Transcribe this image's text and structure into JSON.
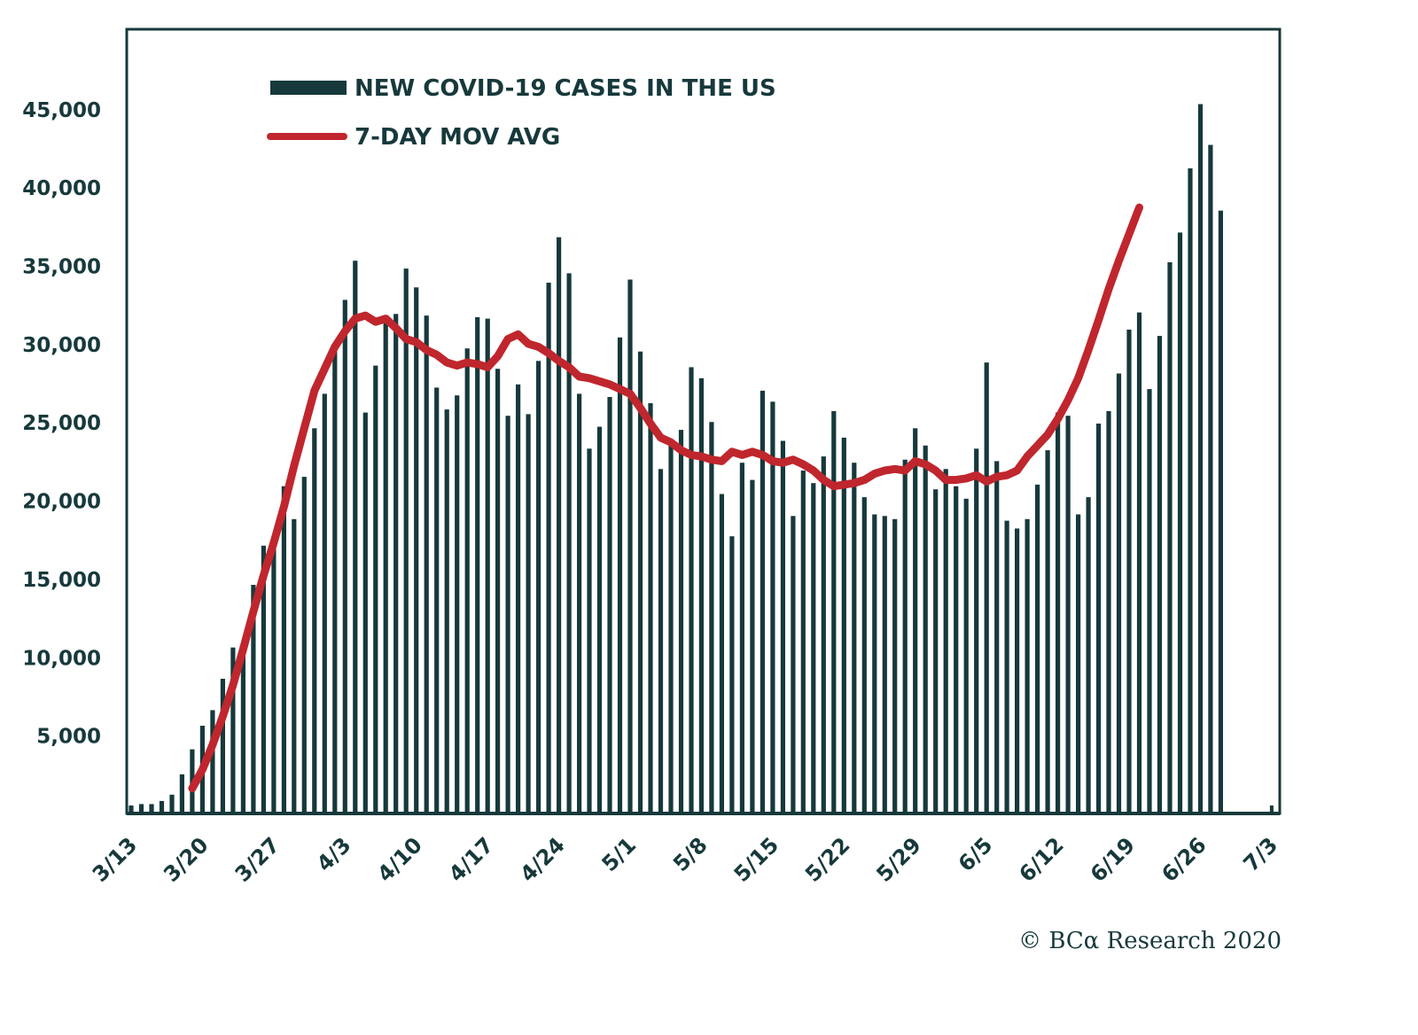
{
  "chart_data": {
    "type": "bar",
    "title": "",
    "xlabel": "",
    "ylabel": "",
    "ylim": [
      0,
      50000
    ],
    "y_ticks": [
      5000,
      10000,
      15000,
      20000,
      25000,
      30000,
      35000,
      40000,
      45000
    ],
    "y_tick_labels": [
      "5,000",
      "10,000",
      "15,000",
      "20,000",
      "25,000",
      "30,000",
      "35,000",
      "40,000",
      "45,000"
    ],
    "x_start": "3/13",
    "x_tick_labels": [
      "3/13",
      "3/20",
      "3/27",
      "4/3",
      "4/10",
      "4/17",
      "4/24",
      "5/1",
      "5/8",
      "5/15",
      "5/22",
      "5/29",
      "6/5",
      "6/12",
      "6/19",
      "6/26",
      "7/3"
    ],
    "x_tick_day_offsets": [
      0,
      7,
      14,
      21,
      28,
      35,
      42,
      49,
      56,
      63,
      70,
      77,
      84,
      91,
      98,
      105,
      112
    ],
    "grid": false,
    "legend": {
      "placement": "top-left",
      "entries": [
        {
          "label": "NEW COVID-19 CASES IN THE US",
          "type": "bar",
          "color": "#17393b"
        },
        {
          "label": "7-DAY MOV AVG",
          "type": "line",
          "color": "#c0262d"
        }
      ]
    },
    "series": [
      {
        "name": "NEW COVID-19 CASES IN THE US",
        "type": "bar",
        "color": "#17393b",
        "start_day_offset": 0,
        "values": [
          500,
          600,
          600,
          800,
          1200,
          2500,
          4100,
          5600,
          6600,
          8600,
          10600,
          10600,
          14600,
          17100,
          17300,
          20900,
          18800,
          21500,
          24600,
          26800,
          29500,
          32800,
          35300,
          25600,
          28600,
          31800,
          31900,
          34800,
          33600,
          31800,
          27200,
          25800,
          26700,
          29700,
          31700,
          31600,
          28400,
          25400,
          27400,
          25500,
          28900,
          33900,
          36800,
          34500,
          26800,
          23300,
          24700,
          26600,
          30400,
          34100,
          29500,
          26200,
          22000,
          23800,
          24500,
          28500,
          27800,
          25000,
          20400,
          17700,
          22400,
          21300,
          27000,
          26300,
          23800,
          19000,
          21900,
          21100,
          22800,
          25700,
          24000,
          22400,
          20200,
          19100,
          19000,
          18800,
          22600,
          24600,
          23500,
          20700,
          22000,
          20900,
          20100,
          23300,
          28800,
          22500,
          18700,
          18200,
          18800,
          21000,
          23200,
          25600,
          25400,
          19100,
          20200,
          24900,
          25700,
          28100,
          30900,
          32000,
          27100,
          30500,
          35200,
          37100,
          41200,
          45300,
          42700,
          38500
        ]
      },
      {
        "name": "7-DAY MOV AVG",
        "type": "line",
        "color": "#c0262d",
        "start_day_offset": 6,
        "values": [
          1600,
          2800,
          4400,
          6200,
          8200,
          10500,
          12900,
          15200,
          17300,
          19600,
          22200,
          24600,
          27000,
          28400,
          29800,
          30800,
          31600,
          31800,
          31400,
          31600,
          31000,
          30300,
          30100,
          29600,
          29300,
          28800,
          28600,
          28800,
          28700,
          28500,
          29200,
          30300,
          30600,
          30000,
          29800,
          29400,
          28900,
          28500,
          27900,
          27800,
          27600,
          27400,
          27100,
          26800,
          25900,
          24900,
          24000,
          23700,
          23200,
          22900,
          22800,
          22600,
          22500,
          23100,
          22900,
          23100,
          22900,
          22500,
          22400,
          22600,
          22300,
          21900,
          21300,
          20900,
          21000,
          21100,
          21300,
          21700,
          21900,
          22000,
          21900,
          22500,
          22300,
          21900,
          21300,
          21300,
          21400,
          21600,
          21200,
          21500,
          21600,
          21900,
          22800,
          23500,
          24200,
          25200,
          26400,
          27800,
          29600,
          31500,
          33500,
          35300,
          37000,
          38700
        ]
      }
    ]
  },
  "footer": {
    "credit": "© BCα Research 2020"
  }
}
